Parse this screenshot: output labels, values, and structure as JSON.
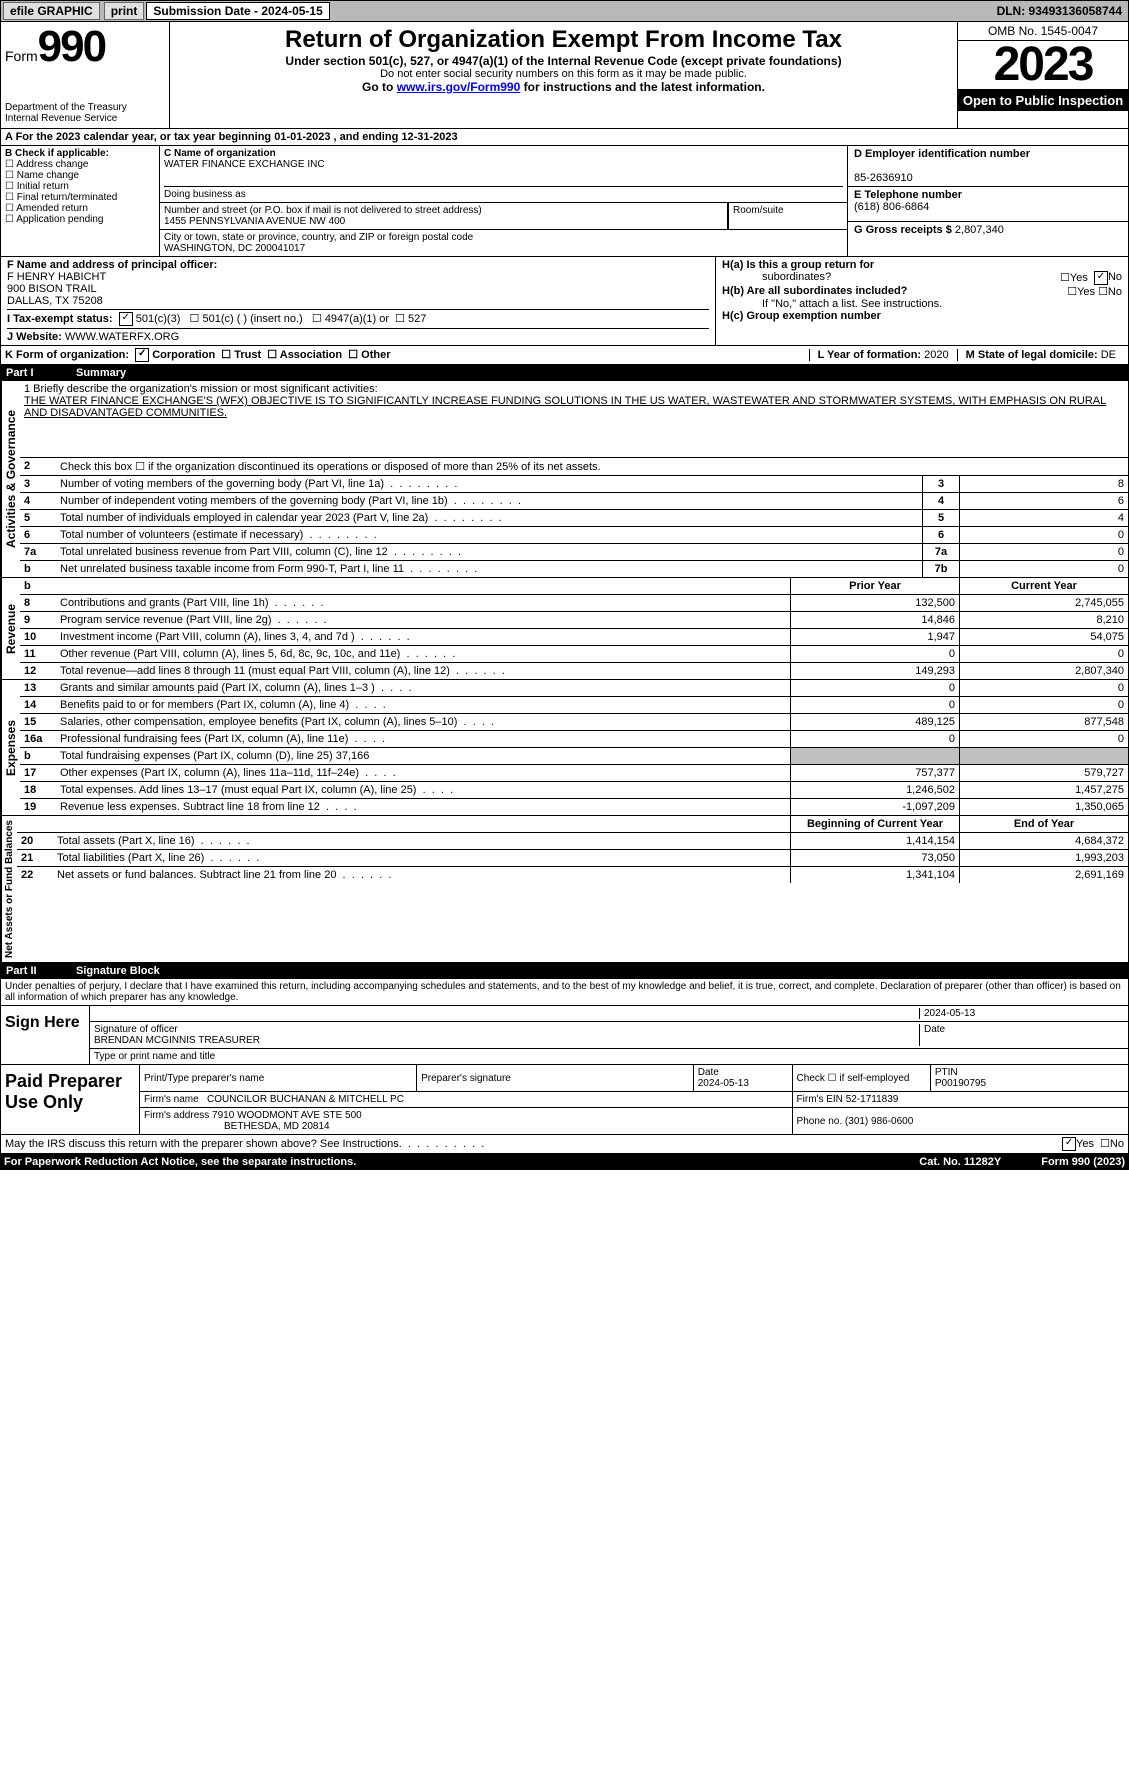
{
  "topbar": {
    "efile": "efile GRAPHIC",
    "print": "print",
    "submission": "Submission Date - 2024-05-15",
    "dln": "DLN: 93493136058744"
  },
  "header": {
    "form_label": "Form",
    "form_number": "990",
    "title": "Return of Organization Exempt From Income Tax",
    "subtitle": "Under section 501(c), 527, or 4947(a)(1) of the Internal Revenue Code (except private foundations)",
    "warn": "Do not enter social security numbers on this form as it may be made public.",
    "goto_pre": "Go to ",
    "goto_link": "www.irs.gov/Form990",
    "goto_post": " for instructions and the latest information.",
    "dept1": "Department of the Treasury",
    "dept2": "Internal Revenue Service",
    "omb": "OMB No. 1545-0047",
    "year": "2023",
    "inspect": "Open to Public Inspection"
  },
  "rowA": "A For the 2023 calendar year, or tax year beginning 01-01-2023   , and ending 12-31-2023",
  "boxB": {
    "title": "B Check if applicable:",
    "opts": [
      "Address change",
      "Name change",
      "Initial return",
      "Final return/terminated",
      "Amended return",
      "Application pending"
    ]
  },
  "boxC": {
    "label_name": "C Name of organization",
    "org_name": "WATER FINANCE EXCHANGE INC",
    "dba_label": "Doing business as",
    "street_label": "Number and street (or P.O. box if mail is not delivered to street address)",
    "room_label": "Room/suite",
    "street": "1455 PENNSYLVANIA AVENUE NW 400",
    "city_label": "City or town, state or province, country, and ZIP or foreign postal code",
    "city": "WASHINGTON, DC  200041017"
  },
  "boxD": {
    "ein_label": "D Employer identification number",
    "ein": "85-2636910",
    "phone_label": "E Telephone number",
    "phone": "(618) 806-6864",
    "gross_label": "G Gross receipts $ ",
    "gross": "2,807,340"
  },
  "boxF": {
    "label": "F  Name and address of principal officer:",
    "name": "F HENRY HABICHT",
    "addr1": "900 BISON TRAIL",
    "addr2": "DALLAS, TX  75208"
  },
  "boxH": {
    "ha_label": "H(a)  Is this a group return for",
    "ha_sub": "subordinates?",
    "hb_label": "H(b)  Are all subordinates included?",
    "hb_note": "If \"No,\" attach a list. See instructions.",
    "hc_label": "H(c)  Group exemption number "
  },
  "rowI": {
    "label": "I   Tax-exempt status:",
    "opt1": "501(c)(3)",
    "opt2": "501(c) (  ) (insert no.)",
    "opt3": "4947(a)(1) or",
    "opt4": "527"
  },
  "rowJ": {
    "label": "J   Website: ",
    "value": "WWW.WATERFX.ORG"
  },
  "rowK": {
    "label": "K Form of organization:",
    "opts": [
      "Corporation",
      "Trust",
      "Association",
      "Other"
    ],
    "l_label": "L Year of formation: ",
    "l_val": "2020",
    "m_label": "M State of legal domicile: ",
    "m_val": "DE"
  },
  "partI": {
    "label": "Part I",
    "title": "Summary"
  },
  "mission": {
    "line1_label": "1   Briefly describe the organization's mission or most significant activities:",
    "text": "THE WATER FINANCE EXCHANGE'S (WFX) OBJECTIVE IS TO SIGNIFICANTLY INCREASE FUNDING SOLUTIONS IN THE US WATER, WASTEWATER AND STORMWATER SYSTEMS, WITH EMPHASIS ON RURAL AND DISADVANTAGED COMMUNITIES."
  },
  "gov": {
    "label": "Activities & Governance",
    "rows": [
      {
        "n": "2",
        "desc": "Check this box ☐ if the organization discontinued its operations or disposed of more than 25% of its net assets.",
        "nl": "",
        "v": ""
      },
      {
        "n": "3",
        "desc": "Number of voting members of the governing body (Part VI, line 1a)",
        "nl": "3",
        "v": "8"
      },
      {
        "n": "4",
        "desc": "Number of independent voting members of the governing body (Part VI, line 1b)",
        "nl": "4",
        "v": "6"
      },
      {
        "n": "5",
        "desc": "Total number of individuals employed in calendar year 2023 (Part V, line 2a)",
        "nl": "5",
        "v": "4"
      },
      {
        "n": "6",
        "desc": "Total number of volunteers (estimate if necessary)",
        "nl": "6",
        "v": "0"
      },
      {
        "n": "7a",
        "desc": "Total unrelated business revenue from Part VIII, column (C), line 12",
        "nl": "7a",
        "v": "0"
      },
      {
        "n": "b",
        "desc": "Net unrelated business taxable income from Form 990-T, Part I, line 11",
        "nl": "7b",
        "v": "0"
      }
    ]
  },
  "revenue": {
    "label": "Revenue",
    "hdr1": "Prior Year",
    "hdr2": "Current Year",
    "rows": [
      {
        "n": "8",
        "desc": "Contributions and grants (Part VIII, line 1h)",
        "v1": "132,500",
        "v2": "2,745,055"
      },
      {
        "n": "9",
        "desc": "Program service revenue (Part VIII, line 2g)",
        "v1": "14,846",
        "v2": "8,210"
      },
      {
        "n": "10",
        "desc": "Investment income (Part VIII, column (A), lines 3, 4, and 7d )",
        "v1": "1,947",
        "v2": "54,075"
      },
      {
        "n": "11",
        "desc": "Other revenue (Part VIII, column (A), lines 5, 6d, 8c, 9c, 10c, and 11e)",
        "v1": "0",
        "v2": "0"
      },
      {
        "n": "12",
        "desc": "Total revenue—add lines 8 through 11 (must equal Part VIII, column (A), line 12)",
        "v1": "149,293",
        "v2": "2,807,340"
      }
    ]
  },
  "expenses": {
    "label": "Expenses",
    "rows": [
      {
        "n": "13",
        "desc": "Grants and similar amounts paid (Part IX, column (A), lines 1–3 )",
        "v1": "0",
        "v2": "0"
      },
      {
        "n": "14",
        "desc": "Benefits paid to or for members (Part IX, column (A), line 4)",
        "v1": "0",
        "v2": "0"
      },
      {
        "n": "15",
        "desc": "Salaries, other compensation, employee benefits (Part IX, column (A), lines 5–10)",
        "v1": "489,125",
        "v2": "877,548"
      },
      {
        "n": "16a",
        "desc": "Professional fundraising fees (Part IX, column (A), line 11e)",
        "v1": "0",
        "v2": "0"
      },
      {
        "n": "b",
        "desc": "Total fundraising expenses (Part IX, column (D), line 25) 37,166",
        "v1": "",
        "v2": ""
      },
      {
        "n": "17",
        "desc": "Other expenses (Part IX, column (A), lines 11a–11d, 11f–24e)",
        "v1": "757,377",
        "v2": "579,727"
      },
      {
        "n": "18",
        "desc": "Total expenses. Add lines 13–17 (must equal Part IX, column (A), line 25)",
        "v1": "1,246,502",
        "v2": "1,457,275"
      },
      {
        "n": "19",
        "desc": "Revenue less expenses. Subtract line 18 from line 12",
        "v1": "-1,097,209",
        "v2": "1,350,065"
      }
    ]
  },
  "netassets": {
    "label": "Net Assets or Fund Balances",
    "hdr1": "Beginning of Current Year",
    "hdr2": "End of Year",
    "rows": [
      {
        "n": "20",
        "desc": "Total assets (Part X, line 16)",
        "v1": "1,414,154",
        "v2": "4,684,372"
      },
      {
        "n": "21",
        "desc": "Total liabilities (Part X, line 26)",
        "v1": "73,050",
        "v2": "1,993,203"
      },
      {
        "n": "22",
        "desc": "Net assets or fund balances. Subtract line 21 from line 20",
        "v1": "1,341,104",
        "v2": "2,691,169"
      }
    ]
  },
  "partII": {
    "label": "Part II",
    "title": "Signature Block"
  },
  "sig": {
    "perjury": "Under penalties of perjury, I declare that I have examined this return, including accompanying schedules and statements, and to the best of my knowledge and belief, it is true, correct, and complete. Declaration of preparer (other than officer) is based on all information of which preparer has any knowledge.",
    "sign_here": "Sign Here",
    "date1": "2024-05-13",
    "sig_label": "Signature of officer",
    "officer": "BRENDAN MCGINNIS TREASURER",
    "type_label": "Type or print name and title",
    "date_label": "Date"
  },
  "paid": {
    "label": "Paid Preparer Use Only",
    "print_label": "Print/Type preparer's name",
    "prep_sig_label": "Preparer's signature",
    "date_label": "Date",
    "date": "2024-05-13",
    "check_label": "Check ☐ if self-employed",
    "ptin_label": "PTIN",
    "ptin": "P00190795",
    "firm_name_label": "Firm's name   ",
    "firm_name": "COUNCILOR BUCHANAN & MITCHELL PC",
    "firm_ein_label": "Firm's EIN  ",
    "firm_ein": "52-1711839",
    "firm_addr_label": "Firm's address ",
    "firm_addr": "7910 WOODMONT AVE STE 500",
    "firm_addr2": "BETHESDA, MD  20814",
    "phone_label": "Phone no. ",
    "phone": "(301) 986-0600"
  },
  "discuss": "May the IRS discuss this return with the preparer shown above? See Instructions.",
  "footer": {
    "left": "For Paperwork Reduction Act Notice, see the separate instructions.",
    "cat": "Cat. No. 11282Y",
    "right": "Form 990 (2023)"
  }
}
